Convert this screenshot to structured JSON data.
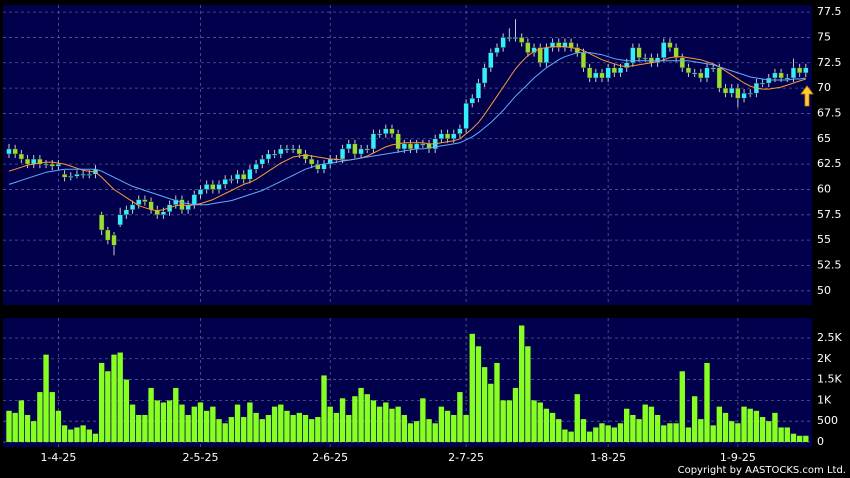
{
  "chart_data": {
    "type": "candlestick",
    "categories": [
      null,
      null,
      null,
      null,
      null,
      null,
      null,
      null,
      "1-4-25",
      null,
      null,
      null,
      null,
      null,
      null,
      null,
      null,
      null,
      null,
      null,
      null,
      null,
      null,
      null,
      null,
      null,
      null,
      null,
      null,
      null,
      null,
      "2-5-25",
      null,
      null,
      null,
      null,
      null,
      null,
      null,
      null,
      null,
      null,
      null,
      null,
      null,
      null,
      null,
      null,
      null,
      null,
      null,
      null,
      "2-6-25",
      null,
      null,
      null,
      null,
      null,
      null,
      null,
      null,
      null,
      null,
      null,
      null,
      null,
      null,
      null,
      null,
      null,
      null,
      null,
      null,
      null,
      "2-7-25",
      null,
      null,
      null,
      null,
      null,
      null,
      null,
      null,
      null,
      null,
      null,
      null,
      null,
      null,
      null,
      null,
      null,
      null,
      null,
      null,
      null,
      null,
      "1-8-25",
      null,
      null,
      null,
      null,
      null,
      null,
      null,
      null,
      null,
      null,
      null,
      null,
      null,
      null,
      null,
      null,
      null,
      null,
      null,
      null,
      "1-9-25",
      null,
      null,
      null,
      null,
      null,
      null,
      null,
      null,
      null,
      null,
      null
    ],
    "ohlc": [
      [
        63.5,
        64.5,
        63.1,
        64
      ],
      [
        64,
        64.4,
        63.1,
        63.5
      ],
      [
        63.5,
        63.9,
        62.6,
        63
      ],
      [
        63,
        63.4,
        62.1,
        62.5
      ],
      [
        62.5,
        63.4,
        62.1,
        63
      ],
      [
        63,
        63.4,
        62.1,
        62.5
      ],
      [
        62.5,
        62.9,
        62.1,
        62.5
      ],
      [
        62.5,
        62.9,
        61.9,
        62.3
      ],
      [
        62.3,
        62.9,
        61.9,
        62.5
      ],
      [
        61.5,
        61.9,
        60.8,
        61.2
      ],
      [
        61.2,
        61.7,
        60.9,
        61.3
      ],
      [
        61.3,
        61.9,
        61.1,
        61.5
      ],
      [
        61.5,
        61.9,
        61.1,
        61.5
      ],
      [
        61.5,
        61.9,
        61.1,
        61.5
      ],
      [
        61.5,
        62.4,
        61.1,
        62
      ],
      [
        57.5,
        57.8,
        55.5,
        56
      ],
      [
        56,
        56.3,
        54.6,
        55
      ],
      [
        55.5,
        55.8,
        53.5,
        54.5
      ],
      [
        56.5,
        58.2,
        56.3,
        57.5
      ],
      [
        57.5,
        58.4,
        57.1,
        58
      ],
      [
        58,
        58.9,
        57.6,
        58.5
      ],
      [
        58.5,
        59.4,
        58.1,
        59
      ],
      [
        59,
        59.4,
        58.4,
        58.8
      ],
      [
        58.8,
        59.2,
        57.6,
        58
      ],
      [
        58,
        58.4,
        57.1,
        57.5
      ],
      [
        57.5,
        58.2,
        57.1,
        57.8
      ],
      [
        57.8,
        58.9,
        57.4,
        58.5
      ],
      [
        58.5,
        59.4,
        58.1,
        59
      ],
      [
        59,
        59.4,
        57.6,
        58
      ],
      [
        58,
        58.9,
        57.6,
        58.5
      ],
      [
        58.5,
        59.9,
        58.1,
        59.5
      ],
      [
        59.5,
        60.4,
        59.1,
        60
      ],
      [
        60,
        60.9,
        59.6,
        60.5
      ],
      [
        60.5,
        60.9,
        59.6,
        60
      ],
      [
        60,
        60.9,
        59.6,
        60.5
      ],
      [
        60.5,
        61.4,
        60.1,
        61
      ],
      [
        61,
        61.4,
        60.6,
        61
      ],
      [
        61,
        61.9,
        60.6,
        61.5
      ],
      [
        61.5,
        61.9,
        60.6,
        61
      ],
      [
        61,
        62.4,
        60.6,
        62
      ],
      [
        62,
        62.9,
        61.6,
        62.5
      ],
      [
        62.5,
        63.4,
        62.1,
        63
      ],
      [
        63,
        63.9,
        62.6,
        63.5
      ],
      [
        63.5,
        63.9,
        63.1,
        63.5
      ],
      [
        63.5,
        64.4,
        63.1,
        64
      ],
      [
        64,
        64.4,
        63.6,
        64
      ],
      [
        64,
        64.4,
        63.6,
        64
      ],
      [
        64,
        64.4,
        63.1,
        63.5
      ],
      [
        63.5,
        63.9,
        62.6,
        63
      ],
      [
        63,
        63.4,
        62.1,
        62.5
      ],
      [
        62.5,
        62.9,
        61.6,
        62
      ],
      [
        62,
        62.9,
        61.6,
        62.5
      ],
      [
        62.5,
        63.4,
        62.1,
        63
      ],
      [
        63,
        63.4,
        62.6,
        63
      ],
      [
        63,
        64.4,
        62.6,
        64
      ],
      [
        64,
        64.9,
        63.6,
        64.5
      ],
      [
        64.5,
        64.9,
        63.1,
        63.5
      ],
      [
        63.5,
        64.4,
        63.1,
        64
      ],
      [
        64,
        64.4,
        63.6,
        64
      ],
      [
        64,
        65.9,
        63.6,
        65.5
      ],
      [
        65.5,
        65.9,
        65.1,
        65.5
      ],
      [
        65.5,
        66.4,
        65.1,
        66
      ],
      [
        66,
        66.4,
        65.1,
        65.5
      ],
      [
        65.5,
        65.9,
        63.6,
        64
      ],
      [
        64,
        64.9,
        63.6,
        64.5
      ],
      [
        64.5,
        64.9,
        63.6,
        64
      ],
      [
        64,
        64.9,
        63.6,
        64.5
      ],
      [
        64.5,
        64.9,
        64.1,
        64.5
      ],
      [
        64.5,
        64.9,
        63.6,
        64
      ],
      [
        64,
        65.4,
        63.6,
        65
      ],
      [
        65,
        65.9,
        64.6,
        65.5
      ],
      [
        65.5,
        65.9,
        64.6,
        65
      ],
      [
        65,
        65.9,
        64.6,
        65.5
      ],
      [
        65.5,
        66.4,
        65.1,
        66
      ],
      [
        66,
        68.9,
        65.6,
        68.5
      ],
      [
        68.5,
        69.4,
        68.1,
        69
      ],
      [
        69,
        70.9,
        68.6,
        70.5
      ],
      [
        70.5,
        72.4,
        70.1,
        72
      ],
      [
        72,
        73.9,
        71.6,
        73.5
      ],
      [
        73.5,
        74.4,
        73.1,
        74
      ],
      [
        74,
        75.4,
        73.6,
        75
      ],
      [
        75,
        75.9,
        74.6,
        75
      ],
      [
        75,
        76.8,
        74.6,
        75
      ],
      [
        75,
        75.4,
        74.1,
        74.5
      ],
      [
        74.5,
        74.9,
        73.1,
        73.5
      ],
      [
        73.5,
        74.4,
        73.1,
        74
      ],
      [
        74,
        74.4,
        72.1,
        72.5
      ],
      [
        72.5,
        74.4,
        72.1,
        74
      ],
      [
        74,
        74.9,
        73.6,
        74.5
      ],
      [
        74.5,
        74.9,
        73.6,
        74
      ],
      [
        74,
        74.9,
        73.6,
        74.5
      ],
      [
        74.5,
        74.9,
        73.6,
        74
      ],
      [
        74,
        74.4,
        73.1,
        73.5
      ],
      [
        73.5,
        73.9,
        71.6,
        72
      ],
      [
        72,
        72.4,
        70.6,
        71
      ],
      [
        71,
        71.9,
        70.6,
        71.5
      ],
      [
        71.5,
        71.9,
        70.6,
        71
      ],
      [
        71,
        72.4,
        70.6,
        72
      ],
      [
        72,
        72.4,
        71.1,
        71.5
      ],
      [
        71.5,
        72.4,
        71.1,
        72
      ],
      [
        72,
        72.9,
        71.6,
        72.5
      ],
      [
        72.5,
        74.4,
        72.1,
        74
      ],
      [
        74,
        74.4,
        72.6,
        73
      ],
      [
        73,
        73.4,
        72.6,
        73
      ],
      [
        73,
        73.4,
        72.1,
        72.5
      ],
      [
        72.5,
        73.4,
        72.1,
        73
      ],
      [
        73,
        74.9,
        72.6,
        74.5
      ],
      [
        74.5,
        74.9,
        73.6,
        74
      ],
      [
        74,
        74.4,
        72.6,
        73
      ],
      [
        73,
        73.4,
        71.6,
        72
      ],
      [
        72,
        72.4,
        71.1,
        71.5
      ],
      [
        71.5,
        71.9,
        71.1,
        71.5
      ],
      [
        71.5,
        71.9,
        70.6,
        71
      ],
      [
        71,
        72.4,
        70.6,
        72
      ],
      [
        72,
        72.4,
        71.6,
        72
      ],
      [
        72,
        72.4,
        69.6,
        70
      ],
      [
        70,
        70.4,
        69.1,
        69.5
      ],
      [
        69.5,
        70.4,
        69.1,
        70
      ],
      [
        70,
        70.4,
        68.1,
        69
      ],
      [
        69,
        69.9,
        68.6,
        69.5
      ],
      [
        69.5,
        69.9,
        69.1,
        69.5
      ],
      [
        69.5,
        70.9,
        69.1,
        70.5
      ],
      [
        70.5,
        70.9,
        70.1,
        70.5
      ],
      [
        70.5,
        71.4,
        70.1,
        71
      ],
      [
        71,
        71.9,
        70.6,
        71.5
      ],
      [
        71.5,
        71.9,
        70.6,
        71
      ],
      [
        71,
        71.4,
        70.6,
        71
      ],
      [
        71,
        72.9,
        70.6,
        72
      ],
      [
        72,
        72.4,
        71.1,
        71.5
      ],
      [
        71.5,
        72.4,
        71.1,
        72
      ]
    ],
    "up_color": "#33eeff",
    "down_color": "#99dd33",
    "ylim": [
      48.6,
      78.2
    ],
    "yticks": [
      50,
      52.5,
      55,
      57.5,
      60,
      62.5,
      65,
      67.5,
      70,
      72.5,
      75,
      77.5
    ],
    "grid": true,
    "moving_averages": [
      {
        "color": "#ff9933",
        "values": [
          61.8,
          62,
          62.2,
          62.4,
          62.5,
          62.6,
          62.7,
          62.7,
          62.6,
          62.5,
          62.3,
          62.1,
          61.9,
          61.8,
          61.7,
          61.2,
          60.6,
          60,
          59.6,
          59.2,
          58.8,
          58.4,
          58.2,
          58,
          57.9,
          58,
          58.2,
          58.4,
          58.5,
          58.4,
          58.5,
          58.6,
          58.8,
          59,
          59.3,
          59.6,
          59.9,
          60.2,
          60.5,
          60.7,
          61,
          61.4,
          61.8,
          62.2,
          62.6,
          62.9,
          63.2,
          63.3,
          63.4,
          63.3,
          63.2,
          63.1,
          63,
          63,
          62.9,
          62.9,
          63,
          63.1,
          63.3,
          63.6,
          63.9,
          64.2,
          64.4,
          64.5,
          64.6,
          64.6,
          64.6,
          64.6,
          64.5,
          64.5,
          64.6,
          64.7,
          64.8,
          65,
          65.5,
          66,
          66.6,
          67.4,
          68.3,
          69.2,
          70.1,
          71,
          71.9,
          72.6,
          73.2,
          73.6,
          73.9,
          74,
          74.1,
          74.1,
          74.1,
          74,
          73.9,
          73.7,
          73.4,
          73.1,
          72.8,
          72.6,
          72.4,
          72.2,
          72.1,
          72.2,
          72.3,
          72.4,
          72.5,
          72.6,
          72.8,
          73,
          73.1,
          73.1,
          73,
          72.9,
          72.8,
          72.6,
          72.4,
          72.1,
          71.7,
          71.3,
          70.9,
          70.5,
          70.2,
          70,
          69.9,
          69.9,
          70,
          70.1,
          70.3,
          70.5,
          70.7,
          70.9
        ]
      },
      {
        "color": "#66aaff",
        "values": [
          60.5,
          60.7,
          60.9,
          61.1,
          61.3,
          61.5,
          61.7,
          61.8,
          61.9,
          62,
          62,
          62,
          62,
          62,
          62,
          61.8,
          61.5,
          61.2,
          60.9,
          60.6,
          60.3,
          60.1,
          59.9,
          59.7,
          59.5,
          59.3,
          59.1,
          58.9,
          58.7,
          58.6,
          58.5,
          58.5,
          58.5,
          58.6,
          58.7,
          58.8,
          58.9,
          59.1,
          59.3,
          59.5,
          59.7,
          59.9,
          60.2,
          60.5,
          60.8,
          61.1,
          61.4,
          61.7,
          62,
          62.2,
          62.4,
          62.5,
          62.6,
          62.7,
          62.8,
          62.9,
          63,
          63.1,
          63.2,
          63.3,
          63.4,
          63.5,
          63.6,
          63.7,
          63.8,
          63.9,
          64,
          64,
          64.1,
          64.2,
          64.3,
          64.4,
          64.5,
          64.6,
          64.9,
          65.2,
          65.6,
          66.1,
          66.6,
          67.2,
          67.8,
          68.5,
          69.2,
          69.8,
          70.4,
          71,
          71.5,
          72,
          72.4,
          72.8,
          73.1,
          73.3,
          73.5,
          73.5,
          73.5,
          73.4,
          73.3,
          73.1,
          72.9,
          72.8,
          72.7,
          72.7,
          72.7,
          72.7,
          72.7,
          72.7,
          72.7,
          72.7,
          72.7,
          72.7,
          72.7,
          72.6,
          72.5,
          72.4,
          72.3,
          72.1,
          71.9,
          71.7,
          71.5,
          71.3,
          71.1,
          71,
          70.9,
          70.8,
          70.8,
          70.8,
          70.8,
          70.9,
          70.9,
          71
        ]
      }
    ],
    "volume": {
      "color": "#88ff22",
      "ylim": [
        -120,
        2980
      ],
      "yticks": [
        0,
        500,
        {
          "value": 1000,
          "label": "1K"
        },
        {
          "value": 1500,
          "label": "1.5K"
        },
        {
          "value": 2000,
          "label": "2K"
        },
        {
          "value": 2500,
          "label": "2.5K"
        }
      ],
      "values": [
        750,
        700,
        1000,
        650,
        500,
        1200,
        2100,
        1200,
        750,
        400,
        300,
        350,
        400,
        300,
        200,
        1900,
        1700,
        2100,
        2150,
        1500,
        900,
        650,
        650,
        1300,
        1000,
        950,
        1000,
        1300,
        900,
        650,
        850,
        950,
        750,
        850,
        550,
        450,
        600,
        900,
        600,
        950,
        700,
        550,
        650,
        850,
        900,
        750,
        650,
        700,
        650,
        550,
        600,
        1600,
        850,
        700,
        1050,
        650,
        1100,
        1300,
        1150,
        1000,
        850,
        950,
        800,
        850,
        650,
        450,
        500,
        1050,
        550,
        450,
        850,
        750,
        650,
        1200,
        650,
        2600,
        2300,
        1800,
        1400,
        1900,
        1000,
        1000,
        1300,
        2800,
        2300,
        1000,
        950,
        800,
        700,
        550,
        300,
        250,
        1150,
        550,
        250,
        350,
        450,
        400,
        350,
        450,
        800,
        650,
        550,
        900,
        850,
        650,
        400,
        450,
        450,
        1700,
        350,
        1100,
        550,
        1900,
        400,
        850,
        700,
        500,
        450,
        850,
        800,
        750,
        600,
        500,
        700,
        350,
        350,
        200,
        150,
        150
      ]
    }
  },
  "footer": "Copyright by AASTOCKS.com Ltd."
}
